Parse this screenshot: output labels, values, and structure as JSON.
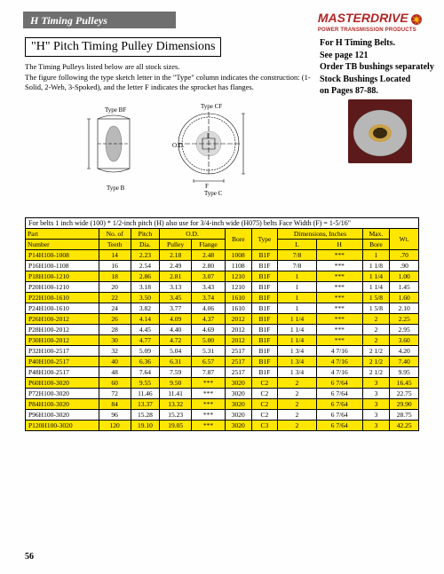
{
  "header": {
    "bar_title": "H Timing Pulleys",
    "brand_main": "MASTERDRIVE",
    "brand_sub": "POWER TRANSMISSION PRODUCTS"
  },
  "title": "\"H\" Pitch Timing Pulley Dimensions",
  "intro1": "The Timing Pulleys listed below are all stock sizes.",
  "intro2": "The figure following the type sketch letter in the \"Type\" column indicates the construction: (1-Solid, 2-Web, 3-Spoked), and the letter F indicates the sprocket has flanges.",
  "side_notes": {
    "l1": "For H Timing Belts.",
    "l2": "See page 121",
    "l3": "Order TB bushings separately",
    "l4": "Stock Bushings Located",
    "l5": "on Pages 87-88."
  },
  "diagram_labels": {
    "type_bf": "Type BF",
    "type_b": "Type B",
    "type_cf": "Type CF",
    "type_c": "Type C",
    "f": "F",
    "od": "O.D."
  },
  "table": {
    "caption": "For belts 1 inch wide (100) * 1/2-inch pitch (H) also use for 3/4-inch wide (H075) belts  Face Width (F) = 1-5/16\"",
    "headers": {
      "part": "Part",
      "number": "Number",
      "teeth": "No. of",
      "teeth2": "Teeth",
      "pitch": "Pitch",
      "dia": "Dia.",
      "od": "O.D.",
      "pulley": "Pulley",
      "flange": "Flange",
      "bore": "Bore",
      "type": "Type",
      "dims": "Dimensions, Inches",
      "L": "L",
      "H": "H",
      "max": "Max.",
      "bore2": "Bore",
      "wt": "Wt."
    },
    "rows": [
      {
        "pn": "P14H100-1008",
        "t": "14",
        "pd": "2.23",
        "odp": "2.18",
        "odf": "2.48",
        "b": "1008",
        "ty": "B1F",
        "L": "7/8",
        "H": "***",
        "mb": "1",
        "wt": ".70"
      },
      {
        "pn": "P16H100-1108",
        "t": "16",
        "pd": "2.54",
        "odp": "2.49",
        "odf": "2.80",
        "b": "1108",
        "ty": "B1F",
        "L": "7/8",
        "H": "***",
        "mb": "1 1/8",
        "wt": ".90"
      },
      {
        "pn": "P18H100-1210",
        "t": "18",
        "pd": "2.86",
        "odp": "2.81",
        "odf": "3.07",
        "b": "1210",
        "ty": "B1F",
        "L": "1",
        "H": "***",
        "mb": "1 1/4",
        "wt": "1.00"
      },
      {
        "pn": "P20H100-1210",
        "t": "20",
        "pd": "3.18",
        "odp": "3.13",
        "odf": "3.43",
        "b": "1210",
        "ty": "B1F",
        "L": "1",
        "H": "***",
        "mb": "1 1/4",
        "wt": "1.45"
      },
      {
        "pn": "P22H100-1610",
        "t": "22",
        "pd": "3.50",
        "odp": "3.45",
        "odf": "3.74",
        "b": "1610",
        "ty": "B1F",
        "L": "1",
        "H": "***",
        "mb": "1 5/8",
        "wt": "1.60"
      },
      {
        "pn": "P24H100-1610",
        "t": "24",
        "pd": "3.82",
        "odp": "3.77",
        "odf": "4.06",
        "b": "1610",
        "ty": "B1F",
        "L": "1",
        "H": "***",
        "mb": "1 5/8",
        "wt": "2.10"
      },
      {
        "pn": "P26H100-2012",
        "t": "26",
        "pd": "4.14",
        "odp": "4.09",
        "odf": "4.37",
        "b": "2012",
        "ty": "B1F",
        "L": "1 1/4",
        "H": "***",
        "mb": "2",
        "wt": "2.25"
      },
      {
        "pn": "P28H100-2012",
        "t": "28",
        "pd": "4.45",
        "odp": "4.40",
        "odf": "4.69",
        "b": "2012",
        "ty": "B1F",
        "L": "1 1/4",
        "H": "***",
        "mb": "2",
        "wt": "2.95"
      },
      {
        "pn": "P30H100-2012",
        "t": "30",
        "pd": "4.77",
        "odp": "4.72",
        "odf": "5.00",
        "b": "2012",
        "ty": "B1F",
        "L": "1 1/4",
        "H": "***",
        "mb": "2",
        "wt": "3.60"
      },
      {
        "pn": "P32H100-2517",
        "t": "32",
        "pd": "5.09",
        "odp": "5.04",
        "odf": "5.31",
        "b": "2517",
        "ty": "B1F",
        "L": "1 3/4",
        "H": "4 7/16",
        "mb": "2 1/2",
        "wt": "4.20"
      },
      {
        "pn": "P40H100-2517",
        "t": "40",
        "pd": "6.36",
        "odp": "6.31",
        "odf": "6.57",
        "b": "2517",
        "ty": "B1F",
        "L": "1 3/4",
        "H": "4 7/16",
        "mb": "2 1/2",
        "wt": "7.40"
      },
      {
        "pn": "P48H100-2517",
        "t": "48",
        "pd": "7.64",
        "odp": "7.59",
        "odf": "7.87",
        "b": "2517",
        "ty": "B1F",
        "L": "1 3/4",
        "H": "4 7/16",
        "mb": "2 1/2",
        "wt": "9.95"
      },
      {
        "pn": "P60H100-3020",
        "t": "60",
        "pd": "9.55",
        "odp": "9.50",
        "odf": "***",
        "b": "3020",
        "ty": "C2",
        "L": "2",
        "H": "6 7/64",
        "mb": "3",
        "wt": "16.45"
      },
      {
        "pn": "P72H100-3020",
        "t": "72",
        "pd": "11.46",
        "odp": "11.41",
        "odf": "***",
        "b": "3020",
        "ty": "C2",
        "L": "2",
        "H": "6 7/64",
        "mb": "3",
        "wt": "22.75"
      },
      {
        "pn": "P84H100-3020",
        "t": "84",
        "pd": "13.37",
        "odp": "13.32",
        "odf": "***",
        "b": "3020",
        "ty": "C2",
        "L": "2",
        "H": "6 7/64",
        "mb": "3",
        "wt": "29.90"
      },
      {
        "pn": "P96H100-3020",
        "t": "96",
        "pd": "15.28",
        "odp": "15.23",
        "odf": "***",
        "b": "3020",
        "ty": "C2",
        "L": "2",
        "H": "6 7/64",
        "mb": "3",
        "wt": "28.75"
      },
      {
        "pn": "P120H100-3020",
        "t": "120",
        "pd": "19.10",
        "odp": "19.05",
        "odf": "***",
        "b": "3020",
        "ty": "C3",
        "L": "2",
        "H": "6 7/64",
        "mb": "3",
        "wt": "42.25"
      }
    ]
  },
  "page_number": "56"
}
